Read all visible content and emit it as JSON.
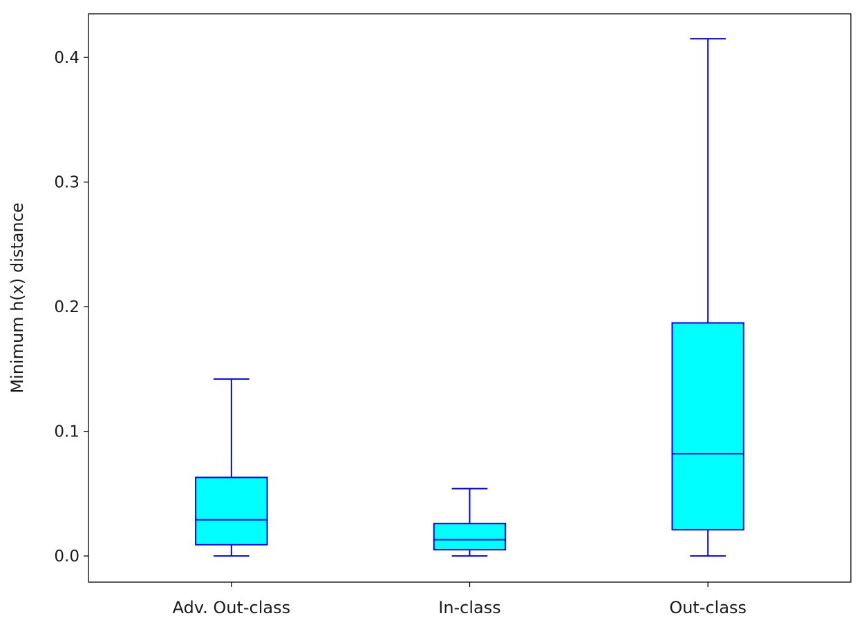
{
  "chart_data": {
    "type": "box",
    "title": "",
    "xlabel": "",
    "ylabel": "Minimum h(x) distance",
    "ylim": [
      -0.021,
      0.435
    ],
    "yticks": [
      0.0,
      0.1,
      0.2,
      0.3,
      0.4
    ],
    "ytick_labels": [
      "0.0",
      "0.1",
      "0.2",
      "0.3",
      "0.4"
    ],
    "categories": [
      "Adv. Out-class",
      "In-class",
      "Out-class"
    ],
    "boxes": [
      {
        "category": "Adv. Out-class",
        "whisker_low": 0.0,
        "q1": 0.009,
        "median": 0.029,
        "q3": 0.063,
        "whisker_high": 0.142
      },
      {
        "category": "In-class",
        "whisker_low": 0.0,
        "q1": 0.005,
        "median": 0.013,
        "q3": 0.026,
        "whisker_high": 0.054
      },
      {
        "category": "Out-class",
        "whisker_low": 0.0,
        "q1": 0.021,
        "median": 0.082,
        "q3": 0.187,
        "whisker_high": 0.415
      }
    ],
    "grid": false,
    "colors": {
      "box_fill": "#00ffff",
      "box_edge": "#0000ff",
      "axes": "#000000"
    }
  }
}
